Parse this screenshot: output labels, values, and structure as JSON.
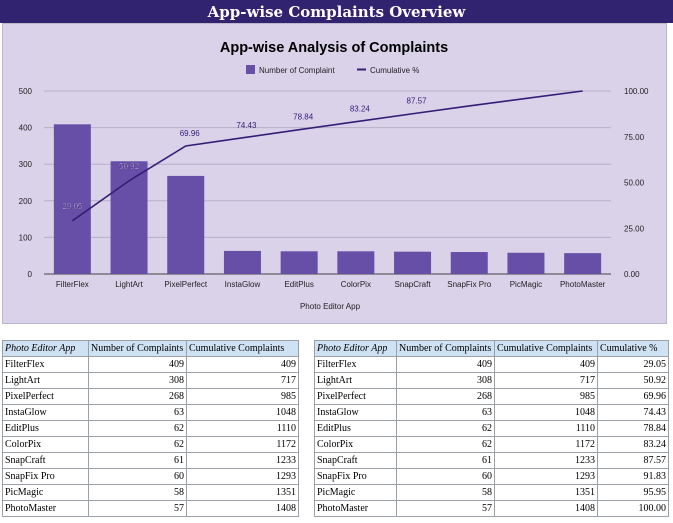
{
  "header": {
    "title": "App-wise Complaints Overview"
  },
  "chart_data": {
    "type": "bar",
    "title": "App-wise Analysis of Complaints",
    "xlabel": "Photo Editor App",
    "ylabel": "",
    "categories": [
      "FilterFlex",
      "LightArt",
      "PixelPerfect",
      "InstaGlow",
      "EditPlus",
      "ColorPix",
      "SnapCraft",
      "SnapFix Pro",
      "PicMagic",
      "PhotoMaster"
    ],
    "series": [
      {
        "name": "Number of Complaint",
        "type": "bar",
        "axis": "left",
        "color": "#674ea7",
        "values": [
          409,
          308,
          268,
          63,
          62,
          62,
          61,
          60,
          58,
          57
        ]
      },
      {
        "name": "Cumulative %",
        "type": "line",
        "axis": "right",
        "color": "#351c75",
        "values": [
          29.05,
          50.92,
          69.96,
          74.43,
          78.84,
          83.24,
          87.57,
          91.83,
          95.95,
          100.0
        ]
      }
    ],
    "line_labels": [
      "29.05",
      "50.92",
      "69.96",
      "74.43",
      "78.84",
      "83.24",
      "87.57"
    ],
    "ylim_left": [
      0,
      500
    ],
    "yticks_left": [
      "0",
      "100",
      "200",
      "300",
      "400",
      "500"
    ],
    "ylim_right": [
      0,
      100
    ],
    "yticks_right": [
      "0.00",
      "25.00",
      "50.00",
      "75.00",
      "100.00"
    ],
    "legend_position": "top-center",
    "grid": true
  },
  "table1": {
    "headers": [
      "Photo Editor App",
      "Number of Complaints",
      "Cumulative Complaints"
    ],
    "rows": [
      [
        "FilterFlex",
        "409",
        "409"
      ],
      [
        "LightArt",
        "308",
        "717"
      ],
      [
        "PixelPerfect",
        "268",
        "985"
      ],
      [
        "InstaGlow",
        "63",
        "1048"
      ],
      [
        "EditPlus",
        "62",
        "1110"
      ],
      [
        "ColorPix",
        "62",
        "1172"
      ],
      [
        "SnapCraft",
        "61",
        "1233"
      ],
      [
        "SnapFix Pro",
        "60",
        "1293"
      ],
      [
        "PicMagic",
        "58",
        "1351"
      ],
      [
        "PhotoMaster",
        "57",
        "1408"
      ]
    ]
  },
  "table2": {
    "headers": [
      "Photo Editor App",
      "Number of Complaints",
      "Cumulative Complaints",
      "Cumulative %"
    ],
    "rows": [
      [
        "FilterFlex",
        "409",
        "409",
        "29.05"
      ],
      [
        "LightArt",
        "308",
        "717",
        "50.92"
      ],
      [
        "PixelPerfect",
        "268",
        "985",
        "69.96"
      ],
      [
        "InstaGlow",
        "63",
        "1048",
        "74.43"
      ],
      [
        "EditPlus",
        "62",
        "1110",
        "78.84"
      ],
      [
        "ColorPix",
        "62",
        "1172",
        "83.24"
      ],
      [
        "SnapCraft",
        "61",
        "1233",
        "87.57"
      ],
      [
        "SnapFix Pro",
        "60",
        "1293",
        "91.83"
      ],
      [
        "PicMagic",
        "58",
        "1351",
        "95.95"
      ],
      [
        "PhotoMaster",
        "57",
        "1408",
        "100.00"
      ]
    ]
  }
}
